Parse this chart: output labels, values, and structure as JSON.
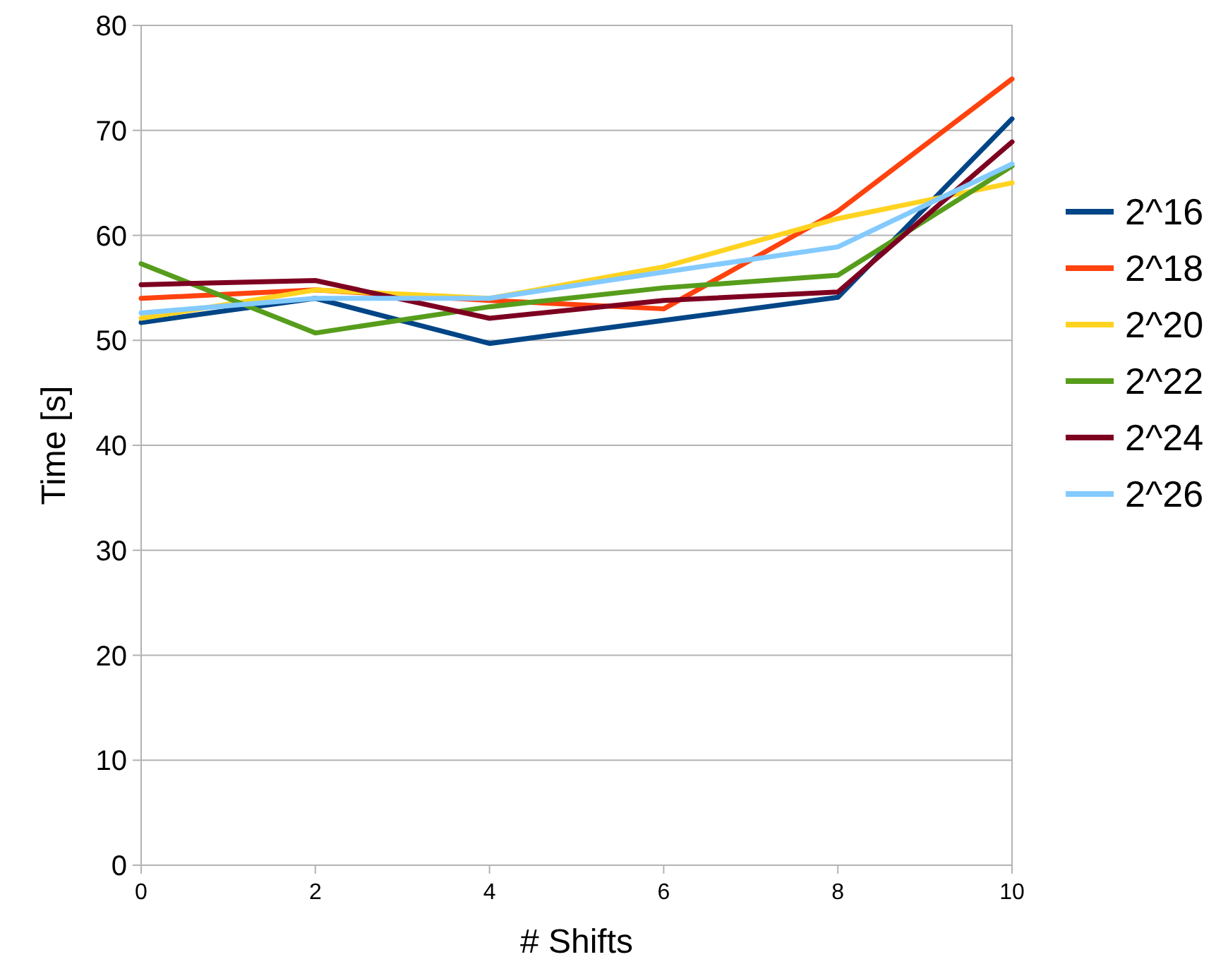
{
  "chart_data": {
    "type": "line",
    "xlabel": "# Shifts",
    "ylabel": "Time [s]",
    "x": [
      0,
      2,
      4,
      6,
      8,
      10
    ],
    "xlim": [
      0,
      10
    ],
    "xticks": [
      0,
      2,
      4,
      6,
      8,
      10
    ],
    "ylim": [
      0,
      80
    ],
    "yticks": [
      0,
      10,
      20,
      30,
      40,
      50,
      60,
      70,
      80
    ],
    "grid": "y",
    "legend": "right",
    "marker": "none",
    "line_style": "solid",
    "series": [
      {
        "name": "2^16",
        "color": "#004586",
        "values": [
          51.7,
          54,
          49.7,
          51.9,
          54.1,
          71.1
        ]
      },
      {
        "name": "2^18",
        "color": "#ff420e",
        "values": [
          54,
          54.8,
          53.8,
          53,
          62.3,
          74.9
        ]
      },
      {
        "name": "2^20",
        "color": "#ffd320",
        "values": [
          52.1,
          54.8,
          54,
          57,
          61.6,
          65
        ]
      },
      {
        "name": "2^22",
        "color": "#579d1c",
        "values": [
          57.3,
          50.7,
          53.2,
          55,
          56.2,
          66.6
        ]
      },
      {
        "name": "2^24",
        "color": "#7e0021",
        "values": [
          55.3,
          55.7,
          52.1,
          53.8,
          54.6,
          68.9
        ]
      },
      {
        "name": "2^26",
        "color": "#83caff",
        "values": [
          52.6,
          54,
          54,
          56.5,
          58.9,
          66.8
        ]
      }
    ]
  }
}
